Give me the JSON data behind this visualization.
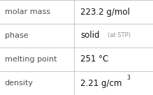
{
  "rows": [
    {
      "label": "molar mass",
      "value": "223.2 g/mol",
      "value_suffix": null,
      "superscript": null
    },
    {
      "label": "phase",
      "value": "solid",
      "value_suffix": "  (at STP)",
      "superscript": null
    },
    {
      "label": "melting point",
      "value": "251 °C",
      "value_suffix": null,
      "superscript": null
    },
    {
      "label": "density",
      "value": "2.21 g/cm",
      "value_suffix": null,
      "superscript": "3"
    }
  ],
  "col_split": 0.485,
  "bg_color": "#ffffff",
  "border_color": "#c8c8c8",
  "label_color": "#505050",
  "value_color": "#111111",
  "suffix_color": "#909090",
  "label_fontsize": 8.0,
  "value_fontsize": 8.5,
  "suffix_fontsize": 6.0,
  "super_fontsize": 5.5
}
